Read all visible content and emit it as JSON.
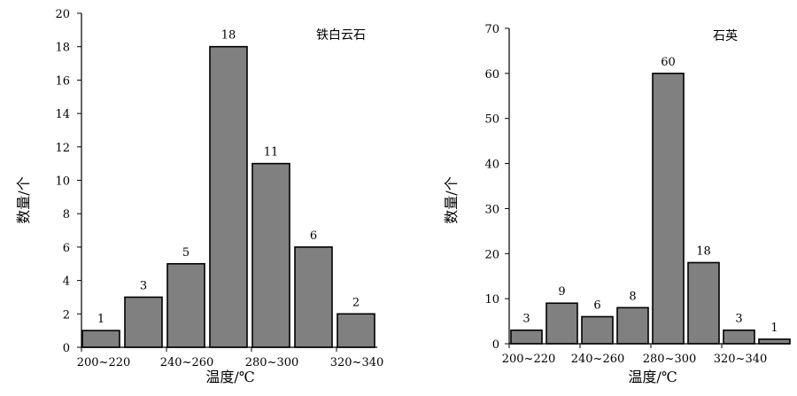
{
  "chart_data": [
    {
      "type": "bar",
      "annotation": "铁白云石",
      "xlabel": "温度/℃",
      "ylabel": "数量/个",
      "ylim": [
        0,
        20
      ],
      "yticks": [
        0,
        2,
        4,
        6,
        8,
        10,
        12,
        14,
        16,
        18,
        20
      ],
      "xtick_labels": [
        "200~220",
        "240~260",
        "280~300",
        "320~340"
      ],
      "values": [
        1,
        3,
        5,
        18,
        11,
        6,
        2
      ],
      "bar_color": "#808080",
      "grid": false,
      "legend": "none"
    },
    {
      "type": "bar",
      "annotation": "石英",
      "xlabel": "温度/℃",
      "ylabel": "数量/个",
      "ylim": [
        0,
        70
      ],
      "yticks": [
        0,
        10,
        20,
        30,
        40,
        50,
        60,
        70
      ],
      "xtick_labels": [
        "200~220",
        "240~260",
        "280~300",
        "320~340"
      ],
      "values": [
        3,
        9,
        6,
        8,
        60,
        18,
        3,
        1
      ],
      "bar_color": "#808080",
      "grid": false,
      "legend": "none"
    }
  ]
}
